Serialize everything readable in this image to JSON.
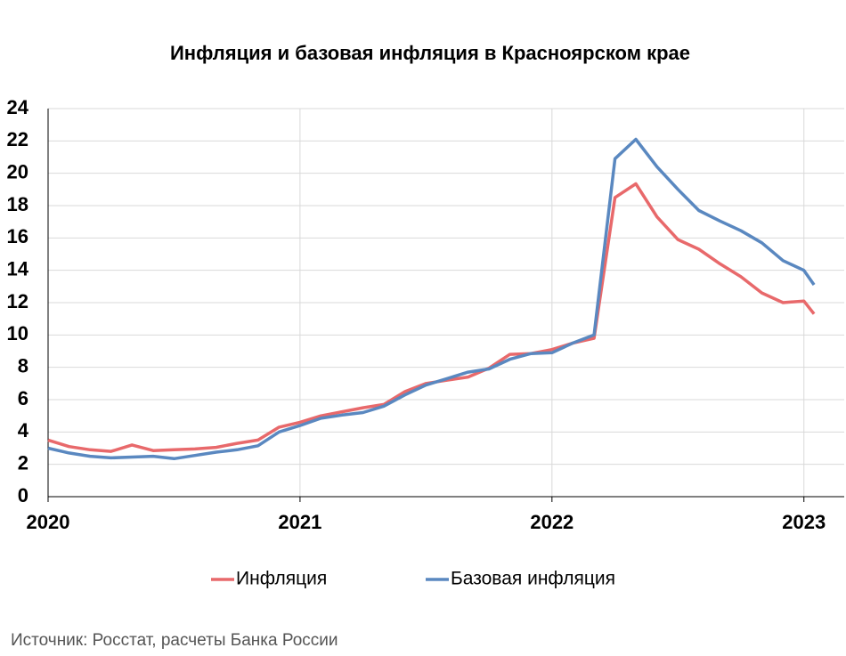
{
  "chart_data": {
    "type": "line",
    "title": "Инфляция и базовая инфляция в Красноярском крае",
    "source": "Источник: Росстат, расчеты Банка России",
    "x": [
      2020,
      2020.083,
      2020.167,
      2020.25,
      2020.333,
      2020.417,
      2020.5,
      2020.583,
      2020.667,
      2020.75,
      2020.833,
      2020.917,
      2021,
      2021.083,
      2021.167,
      2021.25,
      2021.333,
      2021.417,
      2021.5,
      2021.583,
      2021.667,
      2021.75,
      2021.833,
      2021.917,
      2022,
      2022.083,
      2022.167,
      2022.25,
      2022.333,
      2022.417,
      2022.5,
      2022.583,
      2022.667,
      2022.75,
      2022.833,
      2022.917,
      2023,
      2023.04
    ],
    "series": [
      {
        "name": "Инфляция",
        "color": "#e8696b",
        "values": [
          3.5,
          3.1,
          2.9,
          2.8,
          3.2,
          2.85,
          2.9,
          2.95,
          3.05,
          3.3,
          3.5,
          4.3,
          4.6,
          5.0,
          5.25,
          5.5,
          5.7,
          6.5,
          7.0,
          7.2,
          7.4,
          7.95,
          8.8,
          8.85,
          9.1,
          9.5,
          9.8,
          18.5,
          19.35,
          17.3,
          15.9,
          15.3,
          14.4,
          13.6,
          12.6,
          12.0,
          12.1,
          11.3
        ]
      },
      {
        "name": "Базовая инфляция",
        "color": "#5a88c0",
        "values": [
          3.0,
          2.7,
          2.5,
          2.4,
          2.45,
          2.5,
          2.35,
          2.55,
          2.75,
          2.9,
          3.15,
          4.0,
          4.4,
          4.85,
          5.05,
          5.2,
          5.6,
          6.3,
          6.9,
          7.3,
          7.7,
          7.9,
          8.5,
          8.85,
          8.9,
          9.5,
          10.0,
          20.9,
          22.1,
          20.4,
          19.0,
          17.7,
          17.05,
          16.45,
          15.7,
          14.6,
          14.0,
          13.1
        ]
      }
    ],
    "xlim": [
      2020,
      2023.16
    ],
    "xticks": [
      2020,
      2021,
      2022,
      2023
    ],
    "ylim": [
      0,
      24
    ],
    "yticks": [
      0,
      2,
      4,
      6,
      8,
      10,
      12,
      14,
      16,
      18,
      20,
      22,
      24
    ],
    "grid": true,
    "legend": "bottom"
  }
}
